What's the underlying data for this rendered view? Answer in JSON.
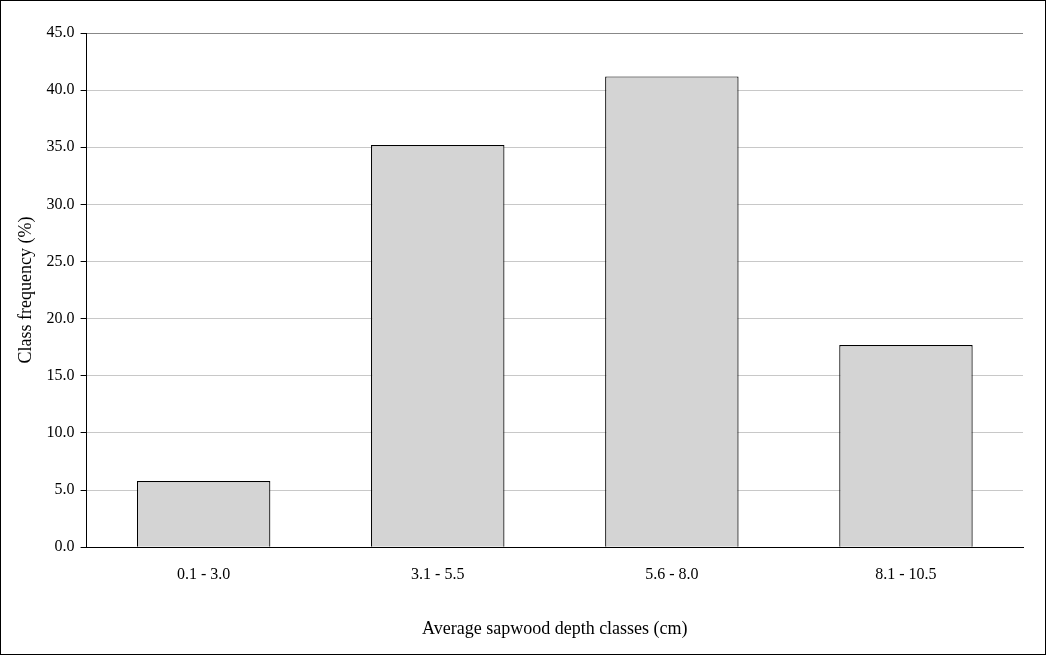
{
  "chart_data": {
    "type": "bar",
    "xlabel": "Average sapwood depth classes (cm)",
    "ylabel": "Class frequency (%)",
    "categories": [
      "0.1 - 3.0",
      "3.1 - 5.5",
      "5.6 - 8.0",
      "8.1 - 10.5"
    ],
    "values": [
      5.8,
      35.2,
      41.2,
      17.7
    ],
    "color": "#d4d4d4",
    "ylim": [
      0,
      45
    ],
    "yticks": [
      {
        "value": 0,
        "label": "0.0"
      },
      {
        "value": 5,
        "label": "5.0"
      },
      {
        "value": 10,
        "label": "10.0"
      },
      {
        "value": 15,
        "label": "15.0"
      },
      {
        "value": 20,
        "label": "20.0"
      },
      {
        "value": 25,
        "label": "25.0"
      },
      {
        "value": 30,
        "label": "30.0"
      },
      {
        "value": 35,
        "label": "35.0"
      },
      {
        "value": 40,
        "label": "40.0"
      },
      {
        "value": 45,
        "label": "45.0"
      }
    ],
    "grid": "y",
    "legend": false
  }
}
